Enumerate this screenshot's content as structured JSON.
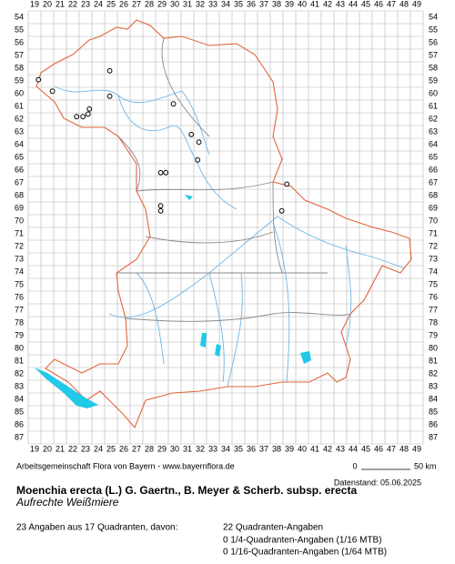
{
  "grid": {
    "x_labels": [
      19,
      20,
      21,
      22,
      23,
      24,
      25,
      26,
      27,
      28,
      29,
      30,
      31,
      32,
      33,
      34,
      35,
      36,
      37,
      38,
      39,
      40,
      41,
      42,
      43,
      44,
      45,
      46,
      47,
      48,
      49
    ],
    "y_labels": [
      54,
      55,
      56,
      57,
      58,
      59,
      60,
      61,
      62,
      63,
      64,
      65,
      66,
      67,
      68,
      69,
      70,
      71,
      72,
      73,
      74,
      75,
      76,
      77,
      78,
      79,
      80,
      81,
      82,
      83,
      84,
      85,
      86,
      87
    ]
  },
  "occurrences": [
    {
      "x": 19.3,
      "y": 58.9
    },
    {
      "x": 20.4,
      "y": 59.8
    },
    {
      "x": 24.9,
      "y": 58.2
    },
    {
      "x": 24.9,
      "y": 60.2
    },
    {
      "x": 23.3,
      "y": 61.2
    },
    {
      "x": 23.2,
      "y": 61.6
    },
    {
      "x": 22.3,
      "y": 61.8
    },
    {
      "x": 22.8,
      "y": 61.8
    },
    {
      "x": 29.9,
      "y": 60.8
    },
    {
      "x": 31.3,
      "y": 63.2
    },
    {
      "x": 31.9,
      "y": 63.8
    },
    {
      "x": 31.8,
      "y": 65.2
    },
    {
      "x": 28.9,
      "y": 66.2
    },
    {
      "x": 29.3,
      "y": 66.2
    },
    {
      "x": 28.9,
      "y": 68.8
    },
    {
      "x": 28.9,
      "y": 69.2
    },
    {
      "x": 38.8,
      "y": 67.1
    },
    {
      "x": 38.4,
      "y": 69.2
    }
  ],
  "credit": "Arbeitsgemeinschaft Flora von Bayern - www.bayernflora.de",
  "scale": {
    "start": "0",
    "end": "50 km"
  },
  "data_date": "Datenstand: 05.06.2025",
  "title": "Moenchia erecta (L.) G. Gaertn., B. Meyer & Scherb. subsp. erecta",
  "subtitle": "Aufrechte Weißmiere",
  "summary": "23 Angaben aus 17 Quadranten, davon:",
  "counts": [
    "22 Quadranten-Angaben",
    "0 1/4-Quadranten-Angaben (1/16 MTB)",
    "0 1/16-Quadranten-Angaben (1/64 MTB)"
  ]
}
